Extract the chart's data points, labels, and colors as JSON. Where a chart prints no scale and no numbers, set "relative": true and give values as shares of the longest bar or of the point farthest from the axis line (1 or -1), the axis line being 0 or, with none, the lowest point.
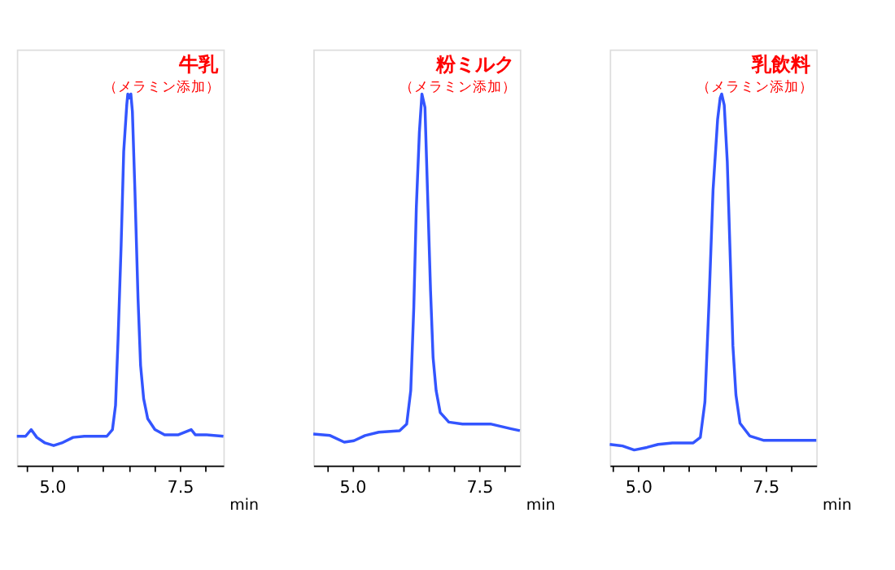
{
  "chart_data": [
    {
      "type": "line",
      "title": "牛乳",
      "subtitle": "（メラミン添加）",
      "xlabel": "min",
      "relative": true,
      "grid": false,
      "marker": "none",
      "line_style": "solid",
      "tick_labels": "x",
      "xlim": [
        4.31,
        8.35
      ],
      "xticks": [
        {
          "value": 4.5,
          "label": null
        },
        {
          "value": 5.0,
          "label": "5.0"
        },
        {
          "value": 5.5,
          "label": null
        },
        {
          "value": 6.0,
          "label": null
        },
        {
          "value": 6.5,
          "label": null
        },
        {
          "value": 7.0,
          "label": null
        },
        {
          "value": 7.5,
          "label": "7.5"
        },
        {
          "value": 8.0,
          "label": null
        }
      ],
      "series": [
        {
          "color": "#3355ff",
          "x": [
            4.31,
            4.48,
            4.59,
            4.7,
            4.86,
            5.03,
            5.19,
            5.41,
            5.63,
            6.07,
            6.18,
            6.24,
            6.29,
            6.35,
            6.4,
            6.46,
            6.48,
            6.51,
            6.54,
            6.57,
            6.62,
            6.68,
            6.73,
            6.79,
            6.87,
            7.01,
            7.2,
            7.47,
            7.72,
            7.8,
            8.02,
            8.35
          ],
          "values": [
            0.079,
            0.079,
            0.097,
            0.076,
            0.061,
            0.054,
            0.061,
            0.076,
            0.079,
            0.079,
            0.097,
            0.162,
            0.342,
            0.594,
            0.845,
            0.971,
            1.0,
            0.989,
            1.0,
            0.953,
            0.737,
            0.45,
            0.27,
            0.18,
            0.126,
            0.097,
            0.083,
            0.083,
            0.097,
            0.083,
            0.083,
            0.079
          ]
        }
      ]
    },
    {
      "type": "line",
      "title": "粉ミルク",
      "subtitle": "（メラミン添加）",
      "xlabel": "min",
      "relative": true,
      "grid": false,
      "marker": "none",
      "line_style": "solid",
      "tick_labels": "x",
      "xlim": [
        4.23,
        8.3
      ],
      "xticks": [
        {
          "value": 4.5,
          "label": null
        },
        {
          "value": 5.0,
          "label": "5.0"
        },
        {
          "value": 5.5,
          "label": null
        },
        {
          "value": 6.0,
          "label": null
        },
        {
          "value": 6.5,
          "label": null
        },
        {
          "value": 7.0,
          "label": null
        },
        {
          "value": 7.5,
          "label": "7.5"
        },
        {
          "value": 8.0,
          "label": null
        }
      ],
      "series": [
        {
          "color": "#3355ff",
          "x": [
            4.23,
            4.56,
            4.84,
            5.03,
            5.25,
            5.52,
            5.93,
            6.07,
            6.15,
            6.21,
            6.26,
            6.32,
            6.37,
            6.43,
            6.48,
            6.54,
            6.59,
            6.65,
            6.73,
            6.9,
            7.17,
            7.72,
            8.13,
            8.3
          ],
          "values": [
            0.085,
            0.081,
            0.063,
            0.067,
            0.081,
            0.09,
            0.094,
            0.112,
            0.202,
            0.426,
            0.695,
            0.897,
            1.0,
            0.964,
            0.74,
            0.471,
            0.291,
            0.202,
            0.143,
            0.117,
            0.112,
            0.112,
            0.099,
            0.094
          ]
        }
      ]
    },
    {
      "type": "line",
      "title": "乳飲料",
      "subtitle": "（メラミン添加）",
      "xlabel": "min",
      "relative": true,
      "grid": false,
      "marker": "none",
      "line_style": "solid",
      "tick_labels": "x",
      "xlim": [
        4.44,
        8.5
      ],
      "xticks": [
        {
          "value": 4.5,
          "label": null
        },
        {
          "value": 5.0,
          "label": "5.0"
        },
        {
          "value": 5.5,
          "label": null
        },
        {
          "value": 6.0,
          "label": null
        },
        {
          "value": 6.5,
          "label": null
        },
        {
          "value": 7.0,
          "label": null
        },
        {
          "value": 7.5,
          "label": "7.5"
        },
        {
          "value": 8.0,
          "label": null
        }
      ],
      "series": [
        {
          "color": "#3355ff",
          "x": [
            4.44,
            4.69,
            4.92,
            5.17,
            5.39,
            5.67,
            6.08,
            6.22,
            6.31,
            6.39,
            6.47,
            6.56,
            6.61,
            6.64,
            6.69,
            6.75,
            6.81,
            6.86,
            6.92,
            7.0,
            7.19,
            7.47,
            8.5
          ],
          "values": [
            0.057,
            0.053,
            0.042,
            0.049,
            0.057,
            0.061,
            0.061,
            0.076,
            0.171,
            0.437,
            0.741,
            0.932,
            0.989,
            1.0,
            0.97,
            0.817,
            0.551,
            0.323,
            0.19,
            0.114,
            0.08,
            0.068,
            0.068
          ]
        }
      ]
    }
  ]
}
